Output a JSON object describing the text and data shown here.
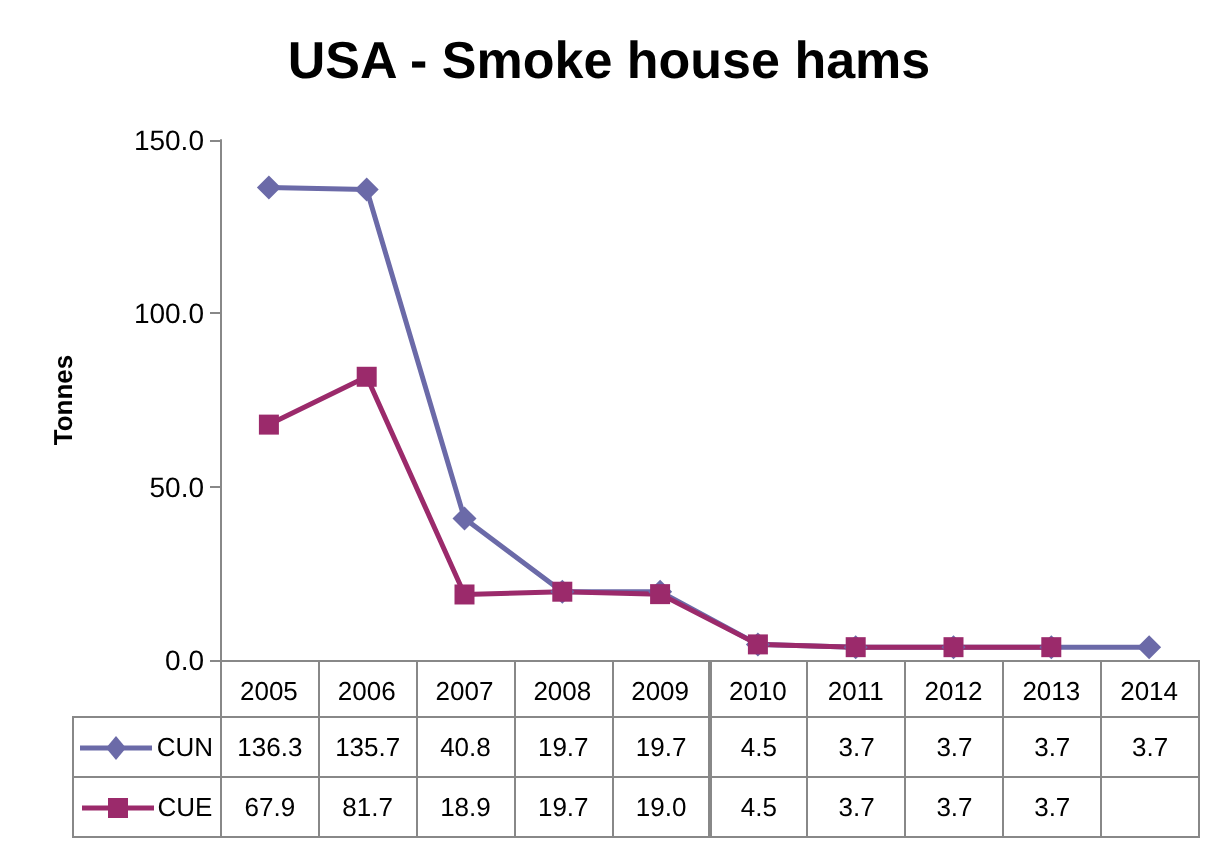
{
  "chart_data": {
    "type": "line",
    "title": "USA - Smoke house hams",
    "ylabel": "Tonnes",
    "categories": [
      "2005",
      "2006",
      "2007",
      "2008",
      "2009",
      "2010",
      "2011",
      "2012",
      "2013",
      "2014"
    ],
    "series": [
      {
        "name": "CUN",
        "color": "#6b6aa8",
        "marker": "diamond",
        "values": [
          136.3,
          135.7,
          40.8,
          19.7,
          19.7,
          4.5,
          3.7,
          3.7,
          3.7,
          3.7
        ],
        "value_labels": [
          "136.3",
          "135.7",
          "40.8",
          "19.7",
          "19.7",
          "4.5",
          "3.7",
          "3.7",
          "3.7",
          "3.7"
        ]
      },
      {
        "name": "CUE",
        "color": "#9b2a6b",
        "marker": "square",
        "values": [
          67.9,
          81.7,
          18.9,
          19.7,
          19.0,
          4.5,
          3.7,
          3.7,
          3.7,
          null
        ],
        "value_labels": [
          "67.9",
          "81.7",
          "18.9",
          "19.7",
          "19.0",
          "4.5",
          "3.7",
          "3.7",
          "3.7",
          null
        ]
      }
    ],
    "ylim": [
      0,
      150
    ],
    "yticks": [
      {
        "value": 0,
        "label": "0.0"
      },
      {
        "value": 50,
        "label": "50.0"
      },
      {
        "value": 100,
        "label": "100.0"
      },
      {
        "value": 150,
        "label": "150.0"
      }
    ],
    "grid": false,
    "legend": "bottom",
    "line_style": "solid"
  }
}
